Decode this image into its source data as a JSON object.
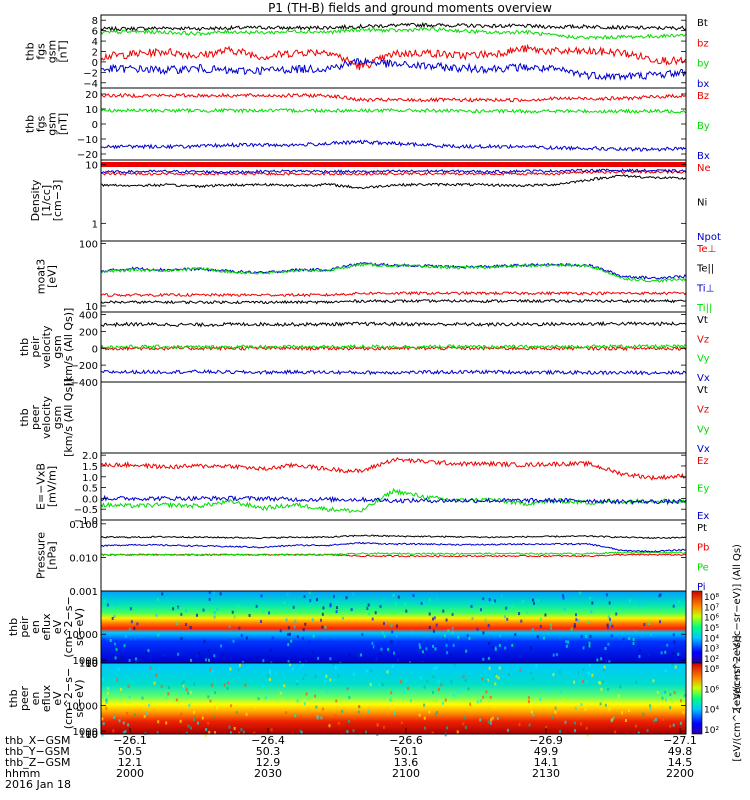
{
  "title": "P1 (TH-B) fields and ground moments overview",
  "colors": {
    "black": "#000000",
    "red": "#ee0000",
    "green": "#00dd00",
    "blue": "#0000cc",
    "axis": "#000000"
  },
  "chart_data": [
    {
      "type": "line",
      "ylabel_lines": [
        "thb",
        "fgs",
        "gsm",
        "[nT]"
      ],
      "yticks": [
        {
          "v": 8,
          "t": "8"
        },
        {
          "v": 6,
          "t": "6"
        },
        {
          "v": 4,
          "t": "4"
        },
        {
          "v": 2,
          "t": "2"
        },
        {
          "v": 0,
          "t": "0"
        },
        {
          "v": -2,
          "t": "−2"
        },
        {
          "v": -4,
          "t": "−4"
        }
      ],
      "ylim": [
        -5,
        9
      ],
      "series": [
        {
          "name": "Bt",
          "color": "black",
          "values": [
            6.3,
            6.4,
            6.5,
            6.4,
            6.5,
            6.6,
            6.5,
            6.6,
            6.8,
            7.0,
            7.1,
            7.0,
            6.9,
            6.9,
            6.7,
            6.8,
            6.6,
            6.5,
            6.5
          ]
        },
        {
          "name": "bz",
          "color": "red",
          "values": [
            1.0,
            1.5,
            2.0,
            1.2,
            2.3,
            1.0,
            1.8,
            2.0,
            -1.0,
            1.5,
            1.8,
            1.2,
            1.5,
            2.5,
            2.0,
            2.0,
            1.8,
            0.5,
            0.0
          ]
        },
        {
          "name": "by",
          "color": "green",
          "values": [
            5.6,
            5.8,
            5.7,
            5.4,
            5.8,
            5.6,
            5.9,
            5.7,
            6.2,
            6.0,
            6.3,
            6.0,
            5.6,
            5.8,
            5.0,
            4.6,
            4.8,
            4.9,
            5.2
          ]
        },
        {
          "name": "bx",
          "color": "blue",
          "values": [
            -1.4,
            -1.3,
            -1.6,
            -1.2,
            -1.8,
            -1.6,
            -1.4,
            -1.2,
            0.2,
            -0.5,
            -0.8,
            -1.2,
            -1.3,
            -1.0,
            -1.5,
            -2.5,
            -2.8,
            -2.5,
            -2.0
          ]
        }
      ]
    },
    {
      "type": "line",
      "ylabel_lines": [
        "thb",
        "fgs",
        "gsm",
        "[nT]"
      ],
      "yticks": [
        {
          "v": 20,
          "t": "20"
        },
        {
          "v": 10,
          "t": "10"
        },
        {
          "v": 0,
          "t": "0"
        },
        {
          "v": -10,
          "t": "−10"
        },
        {
          "v": -20,
          "t": "−20"
        }
      ],
      "ylim": [
        -24,
        24
      ],
      "series": [
        {
          "name": "Bz",
          "color": "red",
          "values": [
            19,
            19,
            19,
            19,
            19,
            19,
            19,
            19,
            16,
            16,
            16,
            16,
            16,
            16,
            17,
            17,
            17,
            18,
            19
          ]
        },
        {
          "name": "By",
          "color": "green",
          "values": [
            9,
            9,
            9,
            9,
            9,
            9,
            9,
            9,
            9,
            9,
            9,
            8.5,
            8.5,
            8.5,
            8.5,
            8.5,
            8.5,
            8.5,
            8.5
          ]
        },
        {
          "name": "Bx",
          "color": "blue",
          "values": [
            -15,
            -15,
            -15,
            -15,
            -14,
            -14,
            -14,
            -13,
            -12,
            -13,
            -14,
            -15,
            -15,
            -15,
            -16,
            -16,
            -17,
            -17,
            -16
          ]
        }
      ]
    },
    {
      "type": "line",
      "log": true,
      "ylabel_lines": [
        "Density",
        "[1/cc]",
        "[cm−3]"
      ],
      "yticks": [
        {
          "v": 10,
          "t": "10"
        },
        {
          "v": 1,
          "t": "1"
        }
      ],
      "ylim": [
        0.5,
        12
      ],
      "series": [
        {
          "name": "Ne",
          "color": "red",
          "values": [
            7,
            7,
            7,
            7,
            7,
            7,
            7,
            7,
            7,
            7,
            7,
            7,
            7,
            7,
            7,
            7.5,
            7.5,
            7.5,
            7.5
          ]
        },
        {
          "name": "Ni",
          "color": "black",
          "values": [
            4.5,
            4.4,
            4.5,
            4.3,
            4.5,
            4.6,
            4.4,
            4.6,
            4.0,
            4.5,
            4.6,
            4.6,
            4.5,
            4.4,
            4.6,
            5.5,
            6.5,
            6.0,
            5.8
          ]
        },
        {
          "name": "Npot",
          "color": "blue",
          "values": [
            7.5,
            7.6,
            7.7,
            7.6,
            7.5,
            7.7,
            7.8,
            7.7,
            7.6,
            7.7,
            7.8,
            7.7,
            7.6,
            7.8,
            7.8,
            8.0,
            8.0,
            7.9,
            7.8
          ]
        }
      ]
    },
    {
      "type": "line",
      "log": true,
      "ylabel_lines": [
        "moat3",
        "[eV]"
      ],
      "yticks": [
        {
          "v": 100,
          "t": "100"
        },
        {
          "v": 10,
          "t": "10"
        }
      ],
      "ylim": [
        8,
        110
      ],
      "series": [
        {
          "name": "Te⊥",
          "color": "red",
          "values": [
            15,
            15,
            15,
            15,
            15,
            15,
            15,
            15,
            16,
            16,
            16,
            16,
            16,
            16,
            16,
            16,
            16,
            16,
            16
          ]
        },
        {
          "name": "Te||",
          "color": "black",
          "values": [
            11.5,
            11.5,
            11.5,
            11.5,
            11.5,
            11.5,
            11.5,
            11.5,
            12,
            12,
            12,
            12,
            12,
            12,
            12,
            12,
            12,
            12,
            12
          ]
        },
        {
          "name": "Ti⊥",
          "color": "blue",
          "values": [
            36,
            40,
            38,
            39,
            36,
            34,
            38,
            38,
            48,
            45,
            44,
            42,
            43,
            45,
            46,
            45,
            30,
            28,
            30
          ]
        },
        {
          "name": "Ti||",
          "color": "green",
          "values": [
            35,
            38,
            37,
            40,
            35,
            33,
            37,
            37,
            46,
            44,
            43,
            41,
            42,
            44,
            45,
            44,
            28,
            25,
            27
          ]
        }
      ]
    },
    {
      "type": "line",
      "ylabel_lines": [
        "thb",
        "peir",
        "velocity",
        "gsm",
        "[km/s (All Qs)]"
      ],
      "yticks": [
        {
          "v": 400,
          "t": "400"
        },
        {
          "v": 200,
          "t": "200"
        },
        {
          "v": 0,
          "t": "0"
        },
        {
          "v": -200,
          "t": "−200"
        },
        {
          "v": -400,
          "t": "−400"
        }
      ],
      "ylim": [
        -400,
        430
      ],
      "series": [
        {
          "name": "Vt",
          "color": "black",
          "values": [
            280,
            285,
            282,
            278,
            284,
            286,
            283,
            285,
            290,
            288,
            286,
            284,
            282,
            285,
            287,
            290,
            292,
            290,
            288
          ]
        },
        {
          "name": "Vz",
          "color": "red",
          "values": [
            0,
            0,
            0,
            0,
            0,
            0,
            0,
            0,
            0,
            0,
            0,
            0,
            0,
            0,
            0,
            0,
            0,
            0,
            0
          ]
        },
        {
          "name": "Vy",
          "color": "green",
          "values": [
            15,
            18,
            16,
            14,
            17,
            18,
            16,
            15,
            20,
            18,
            17,
            18,
            16,
            17,
            18,
            20,
            22,
            21,
            20
          ]
        },
        {
          "name": "Vx",
          "color": "blue",
          "values": [
            -280,
            -282,
            -280,
            -278,
            -283,
            -285,
            -282,
            -284,
            -288,
            -286,
            -284,
            -282,
            -280,
            -284,
            -286,
            -289,
            -290,
            -289,
            -287
          ]
        }
      ]
    },
    {
      "type": "line",
      "ylabel_lines": [
        "thb",
        "peer",
        "velocity",
        "gsm",
        "[km/s (All Qs)]"
      ],
      "yticks": [],
      "ylim": [
        0,
        1
      ],
      "series": [
        {
          "name": "Vt",
          "color": "black",
          "values": []
        },
        {
          "name": "Vz",
          "color": "red",
          "values": []
        },
        {
          "name": "Vy",
          "color": "green",
          "values": []
        },
        {
          "name": "Vx",
          "color": "blue",
          "values": []
        }
      ]
    },
    {
      "type": "line",
      "ylabel_lines": [
        "E=−VxB",
        "[mV/m]"
      ],
      "yticks": [
        {
          "v": 2.0,
          "t": "2.0"
        },
        {
          "v": 1.5,
          "t": "1.5"
        },
        {
          "v": 1.0,
          "t": "1.0"
        },
        {
          "v": 0.5,
          "t": "0.5"
        },
        {
          "v": 0.0,
          "t": "0.0"
        },
        {
          "v": -0.5,
          "t": "−0.5"
        },
        {
          "v": -1.0,
          "t": "−1.0"
        }
      ],
      "ylim": [
        -1.0,
        2.1
      ],
      "series": [
        {
          "name": "Ez",
          "color": "red",
          "values": [
            1.55,
            1.55,
            1.45,
            1.5,
            1.5,
            1.35,
            1.55,
            1.35,
            1.25,
            1.8,
            1.7,
            1.6,
            1.6,
            1.55,
            1.6,
            1.6,
            1.15,
            0.95,
            1.05
          ]
        },
        {
          "name": "Ey",
          "color": "green",
          "values": [
            -0.3,
            -0.35,
            -0.3,
            -0.35,
            -0.15,
            -0.45,
            -0.3,
            -0.5,
            -0.6,
            0.35,
            0.05,
            -0.1,
            -0.05,
            -0.25,
            -0.1,
            -0.2,
            -0.15,
            -0.1,
            -0.15
          ]
        },
        {
          "name": "Ex",
          "color": "blue",
          "values": [
            0.0,
            0.0,
            0.0,
            0.0,
            0.0,
            0.0,
            -0.05,
            -0.05,
            -0.05,
            -0.1,
            -0.1,
            -0.1,
            -0.1,
            -0.1,
            -0.1,
            -0.1,
            -0.15,
            -0.15,
            -0.15
          ]
        }
      ]
    },
    {
      "type": "line",
      "log": true,
      "ylabel_lines": [
        "Pressure",
        "[nPa]"
      ],
      "yticks": [
        {
          "v": 0.1,
          "t": "0.100"
        },
        {
          "v": 0.01,
          "t": "0.010"
        },
        {
          "v": 0.001,
          "t": "0.001"
        }
      ],
      "ylim": [
        0.001,
        0.13
      ],
      "series": [
        {
          "name": "Pt",
          "color": "black",
          "values": [
            0.04,
            0.04,
            0.041,
            0.04,
            0.039,
            0.038,
            0.04,
            0.04,
            0.045,
            0.043,
            0.042,
            0.041,
            0.04,
            0.041,
            0.042,
            0.043,
            0.04,
            0.038,
            0.039
          ]
        },
        {
          "name": "Pb",
          "color": "red",
          "values": [
            0.012,
            0.012,
            0.012,
            0.012,
            0.012,
            0.012,
            0.012,
            0.012,
            0.011,
            0.011,
            0.011,
            0.011,
            0.011,
            0.011,
            0.011,
            0.011,
            0.012,
            0.012,
            0.012
          ]
        },
        {
          "name": "Pe",
          "color": "green",
          "values": [
            0.012,
            0.012,
            0.012,
            0.012,
            0.012,
            0.012,
            0.012,
            0.012,
            0.013,
            0.013,
            0.013,
            0.013,
            0.013,
            0.013,
            0.013,
            0.013,
            0.014,
            0.014,
            0.014
          ]
        },
        {
          "name": "Pi",
          "color": "blue",
          "values": [
            0.022,
            0.024,
            0.023,
            0.022,
            0.021,
            0.02,
            0.023,
            0.023,
            0.027,
            0.025,
            0.025,
            0.024,
            0.024,
            0.025,
            0.025,
            0.025,
            0.016,
            0.015,
            0.017
          ]
        }
      ]
    },
    {
      "type": "heatmap",
      "ylabel_lines": [
        "thb",
        "peir",
        "en",
        "eflux",
        "eV",
        "(cm^2−s−",
        "sr−eV)"
      ],
      "yticks": [
        {
          "v": 10000,
          "t": "10000"
        },
        {
          "v": 1000,
          "t": "1000"
        },
        {
          "v": 100,
          "t": "100"
        },
        {
          "v": 10,
          "t": "10"
        }
      ],
      "ylim": [
        7,
        25000
      ],
      "colorbar_ticks": [
        "10⁸",
        "10⁷",
        "10⁶",
        "10⁵",
        "10⁴",
        "10³",
        "10²"
      ],
      "colorbar_label": "[eV/(cm^2−sec−sr−eV)] (All Qs)"
    },
    {
      "type": "heatmap",
      "ylabel_lines": [
        "thb",
        "peer",
        "en",
        "eflux",
        "eV",
        "(cm^2−s−",
        "sr−eV)"
      ],
      "yticks": [
        {
          "v": 10000,
          "t": "10000"
        },
        {
          "v": 1000,
          "t": "1000"
        },
        {
          "v": 100,
          "t": "100"
        },
        {
          "v": 10,
          "t": "10"
        }
      ],
      "ylim": [
        7,
        25000
      ],
      "colorbar_ticks": [
        "10⁸",
        "10⁶",
        "10⁴",
        "10²"
      ],
      "colorbar_label": "[eV/(cm^2−sec−sr−eV)]"
    }
  ],
  "xaxis": {
    "rows": [
      {
        "label": "thb_X−GSM",
        "values": [
          "−26.1",
          "−26.4",
          "−26.6",
          "−26.9",
          "−27.1"
        ]
      },
      {
        "label": "thb_Y−GSM",
        "values": [
          "50.5",
          "50.3",
          "50.1",
          "49.9",
          "49.8"
        ]
      },
      {
        "label": "thb_Z−GSM",
        "values": [
          "12.1",
          "12.9",
          "13.6",
          "14.1",
          "14.5"
        ]
      },
      {
        "label": "hhmm",
        "values": [
          "2000",
          "2030",
          "2100",
          "2130",
          "2200"
        ]
      }
    ],
    "date": "2016 Jan 18"
  }
}
